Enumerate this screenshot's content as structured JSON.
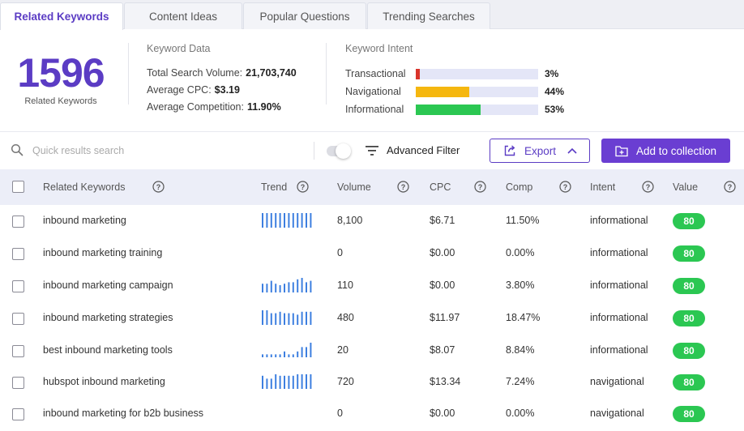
{
  "tabs": [
    {
      "label": "Related Keywords",
      "active": true
    },
    {
      "label": "Content Ideas",
      "active": false
    },
    {
      "label": "Popular Questions",
      "active": false
    },
    {
      "label": "Trending Searches",
      "active": false
    }
  ],
  "summary": {
    "count": "1596",
    "count_label": "Related Keywords",
    "keyword_data": {
      "title": "Keyword Data",
      "rows": [
        {
          "label": "Total Search Volume:",
          "value": "21,703,740"
        },
        {
          "label": "Average CPC:",
          "value": "$3.19"
        },
        {
          "label": "Average Competition:",
          "value": "11.90%"
        }
      ]
    },
    "keyword_intent": {
      "title": "Keyword Intent",
      "rows": [
        {
          "label": "Transactional",
          "percent_text": "3%",
          "percent": 3,
          "color": "#d9342b"
        },
        {
          "label": "Navigational",
          "percent_text": "44%",
          "percent": 44,
          "color": "#f5b70f"
        },
        {
          "label": "Informational",
          "percent_text": "53%",
          "percent": 53,
          "color": "#2bc752"
        }
      ]
    }
  },
  "toolbar": {
    "search_placeholder": "Quick results search",
    "filter_label": "Advanced Filter",
    "export_label": "Export",
    "collection_label": "Add to collection",
    "accent": "#6a3ed2"
  },
  "table": {
    "headers": [
      "Related Keywords",
      "Trend",
      "Volume",
      "CPC",
      "Comp",
      "Intent",
      "Value"
    ],
    "rows": [
      {
        "keyword": "inbound marketing",
        "trend": [
          10,
          10,
          10,
          10,
          10,
          10,
          10,
          10,
          10,
          10,
          10,
          10
        ],
        "volume": "8,100",
        "cpc": "$6.71",
        "comp": "11.50%",
        "intent": "informational",
        "value": "80"
      },
      {
        "keyword": "inbound marketing training",
        "trend": [],
        "volume": "0",
        "cpc": "$0.00",
        "comp": "0.00%",
        "intent": "informational",
        "value": "80"
      },
      {
        "keyword": "inbound marketing campaign",
        "trend": [
          6,
          6,
          8,
          6,
          5,
          6,
          7,
          7,
          9,
          10,
          7,
          8
        ],
        "volume": "110",
        "cpc": "$0.00",
        "comp": "3.80%",
        "intent": "informational",
        "value": "80"
      },
      {
        "keyword": "inbound marketing strategies",
        "trend": [
          10,
          10,
          8,
          8,
          9,
          8,
          8,
          8,
          7,
          9,
          9,
          9
        ],
        "volume": "480",
        "cpc": "$11.97",
        "comp": "18.47%",
        "intent": "informational",
        "value": "80"
      },
      {
        "keyword": "best inbound marketing tools",
        "trend": [
          2,
          2,
          2,
          2,
          2,
          4,
          2,
          2,
          4,
          7,
          7,
          10
        ],
        "volume": "20",
        "cpc": "$8.07",
        "comp": "8.84%",
        "intent": "informational",
        "value": "80"
      },
      {
        "keyword": "hubspot inbound marketing",
        "trend": [
          9,
          7,
          7,
          10,
          9,
          9,
          9,
          9,
          10,
          10,
          10,
          10
        ],
        "volume": "720",
        "cpc": "$13.34",
        "comp": "7.24%",
        "intent": "navigational",
        "value": "80"
      },
      {
        "keyword": "inbound marketing for b2b business",
        "trend": [],
        "volume": "0",
        "cpc": "$0.00",
        "comp": "0.00%",
        "intent": "navigational",
        "value": "80"
      }
    ]
  }
}
